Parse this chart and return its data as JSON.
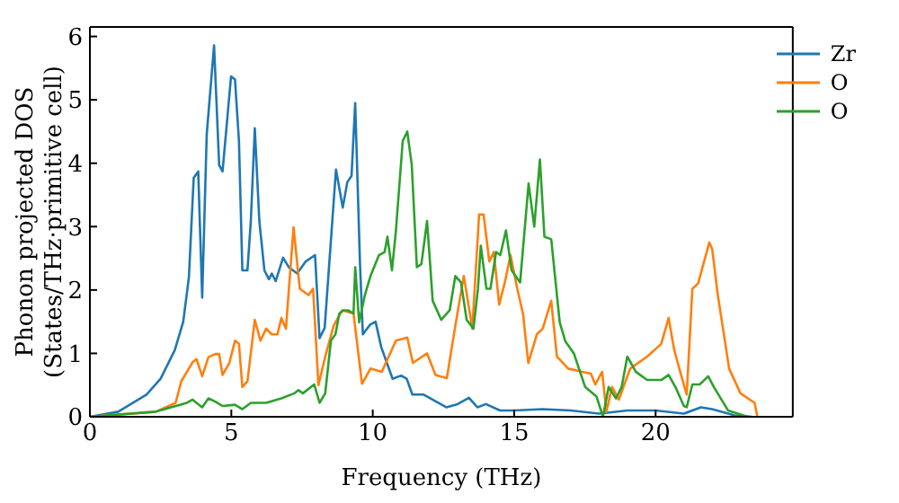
{
  "chart_data": {
    "type": "line",
    "xlabel": "Frequency (THz)",
    "ylabel": "Phonon projected DOS\n(States/THz·primitive cell)",
    "xlim": [
      0,
      24.85
    ],
    "xticks": [
      0,
      5,
      10,
      15,
      20
    ],
    "ylim": [
      0,
      6.15
    ],
    "yticks": [
      0,
      1,
      2,
      3,
      4,
      5,
      6
    ],
    "grid": false,
    "legend": "top right",
    "marker": "none",
    "line_style": "solid",
    "series": [
      {
        "name": "Zr",
        "color": "#1f77b4",
        "x": [
          0,
          1,
          2,
          2.5,
          3,
          3.3,
          3.5,
          3.67,
          3.83,
          3.97,
          4.13,
          4.39,
          4.57,
          4.69,
          4.99,
          5.13,
          5.27,
          5.39,
          5.57,
          5.69,
          5.83,
          5.99,
          6.17,
          6.33,
          6.43,
          6.57,
          6.83,
          7.03,
          7.33,
          7.63,
          7.96,
          8.12,
          8.3,
          8.7,
          8.94,
          9.1,
          9.25,
          9.38,
          9.55,
          9.65,
          9.9,
          10.1,
          10.3,
          10.5,
          10.7,
          11.0,
          11.2,
          11.4,
          11.8,
          12.2,
          12.6,
          13.0,
          13.4,
          13.7,
          14.0,
          14.5,
          15,
          16,
          17,
          18,
          19,
          20,
          21,
          21.6,
          22,
          22.8,
          23.4
        ],
        "values": [
          0,
          0.08,
          0.35,
          0.6,
          1.05,
          1.5,
          2.2,
          3.77,
          3.87,
          1.88,
          4.45,
          5.86,
          3.97,
          3.87,
          5.37,
          5.32,
          4.35,
          2.31,
          2.31,
          3.09,
          4.55,
          3.09,
          2.31,
          2.17,
          2.26,
          2.14,
          2.51,
          2.36,
          2.26,
          2.45,
          2.55,
          1.24,
          1.4,
          3.9,
          3.3,
          3.7,
          3.8,
          4.95,
          2.4,
          1.3,
          1.45,
          1.5,
          1.1,
          0.85,
          0.6,
          0.65,
          0.6,
          0.35,
          0.35,
          0.25,
          0.15,
          0.2,
          0.3,
          0.15,
          0.2,
          0.1,
          0.1,
          0.12,
          0.1,
          0.05,
          0.1,
          0.1,
          0.05,
          0.15,
          0.12,
          0.02,
          0
        ]
      },
      {
        "name": "O",
        "color": "#ff7f0e",
        "x": [
          0,
          2.33,
          3.03,
          3.23,
          3.63,
          3.77,
          3.97,
          4.19,
          4.43,
          4.57,
          4.69,
          4.93,
          5.13,
          5.27,
          5.39,
          5.57,
          5.83,
          6.03,
          6.23,
          6.43,
          6.63,
          6.77,
          6.93,
          7.2,
          7.42,
          7.73,
          7.89,
          8.08,
          8.32,
          8.62,
          8.92,
          9.32,
          9.62,
          9.92,
          10.32,
          10.82,
          11.22,
          11.42,
          11.92,
          12.22,
          12.62,
          12.92,
          13.22,
          13.52,
          13.76,
          13.92,
          14.12,
          14.28,
          14.47,
          14.67,
          14.87,
          15.11,
          15.31,
          15.5,
          15.8,
          16.01,
          16.31,
          16.51,
          16.91,
          17.41,
          17.71,
          17.87,
          18.11,
          18.26,
          18.46,
          18.7,
          19.1,
          19.7,
          20.2,
          20.46,
          20.66,
          20.9,
          21.1,
          21.3,
          21.5,
          21.9,
          22.0,
          22.2,
          22.6,
          23.0,
          23.5,
          23.6
        ],
        "values": [
          0,
          0.08,
          0.22,
          0.56,
          0.86,
          0.91,
          0.64,
          0.94,
          0.99,
          0.99,
          0.66,
          0.85,
          1.2,
          1.15,
          0.47,
          0.56,
          1.53,
          1.2,
          1.39,
          1.3,
          1.3,
          1.56,
          1.39,
          2.99,
          2.02,
          1.92,
          2.02,
          0.5,
          0.95,
          1.44,
          1.68,
          1.63,
          0.52,
          0.76,
          0.71,
          1.2,
          1.25,
          0.85,
          1.0,
          0.66,
          0.61,
          1.44,
          2.22,
          1.39,
          3.19,
          3.19,
          2.45,
          2.6,
          1.77,
          2.12,
          2.55,
          2.02,
          1.63,
          0.85,
          1.3,
          1.39,
          1.83,
          0.95,
          0.76,
          0.71,
          0.68,
          0.51,
          0.71,
          0.08,
          0.47,
          0.27,
          0.76,
          0.95,
          1.15,
          1.56,
          1.05,
          0.66,
          0.35,
          2.02,
          2.1,
          2.75,
          2.65,
          1.92,
          0.76,
          0.37,
          0.22,
          0
        ]
      },
      {
        "name": "O",
        "color": "#2ca02c",
        "x": [
          0,
          2.33,
          3.43,
          3.63,
          3.77,
          3.97,
          4.19,
          4.43,
          4.69,
          5.13,
          5.39,
          5.69,
          5.93,
          6.23,
          6.77,
          7.23,
          7.37,
          7.53,
          7.93,
          8.12,
          8.32,
          8.52,
          8.68,
          8.82,
          8.96,
          9.12,
          9.32,
          9.38,
          9.52,
          9.72,
          9.92,
          10.22,
          10.42,
          10.52,
          10.68,
          10.82,
          11.06,
          11.22,
          11.38,
          11.56,
          11.72,
          11.92,
          12.12,
          12.42,
          12.72,
          12.92,
          13.12,
          13.32,
          13.56,
          13.72,
          13.82,
          14.02,
          14.16,
          14.36,
          14.51,
          14.71,
          14.91,
          15.21,
          15.51,
          15.71,
          15.91,
          16.07,
          16.31,
          16.61,
          16.81,
          17.11,
          17.51,
          17.91,
          18.14,
          18.34,
          18.6,
          18.8,
          19.0,
          19.3,
          19.7,
          20.2,
          20.46,
          20.7,
          21.0,
          21.1,
          21.3,
          21.56,
          21.86,
          22.06,
          22.56,
          23.26
        ],
        "values": [
          0,
          0.08,
          0.22,
          0.27,
          0.22,
          0.15,
          0.29,
          0.24,
          0.17,
          0.19,
          0.12,
          0.22,
          0.22,
          0.22,
          0.29,
          0.37,
          0.42,
          0.37,
          0.51,
          0.22,
          0.37,
          1.2,
          1.3,
          1.63,
          1.68,
          1.68,
          1.63,
          2.36,
          1.49,
          1.92,
          2.22,
          2.55,
          2.6,
          2.84,
          2.31,
          2.94,
          4.35,
          4.5,
          3.97,
          2.36,
          2.41,
          3.09,
          1.83,
          1.53,
          1.68,
          2.22,
          2.12,
          1.53,
          1.39,
          2.02,
          2.7,
          2.02,
          2.02,
          2.6,
          2.55,
          2.94,
          2.31,
          2.12,
          3.68,
          3.0,
          4.06,
          2.84,
          2.8,
          1.49,
          1.19,
          1.0,
          0.47,
          0.32,
          0,
          0.47,
          0.29,
          0.47,
          0.95,
          0.71,
          0.58,
          0.58,
          0.66,
          0.47,
          0.17,
          0.15,
          0.51,
          0.51,
          0.64,
          0.47,
          0.1,
          0
        ]
      }
    ]
  }
}
